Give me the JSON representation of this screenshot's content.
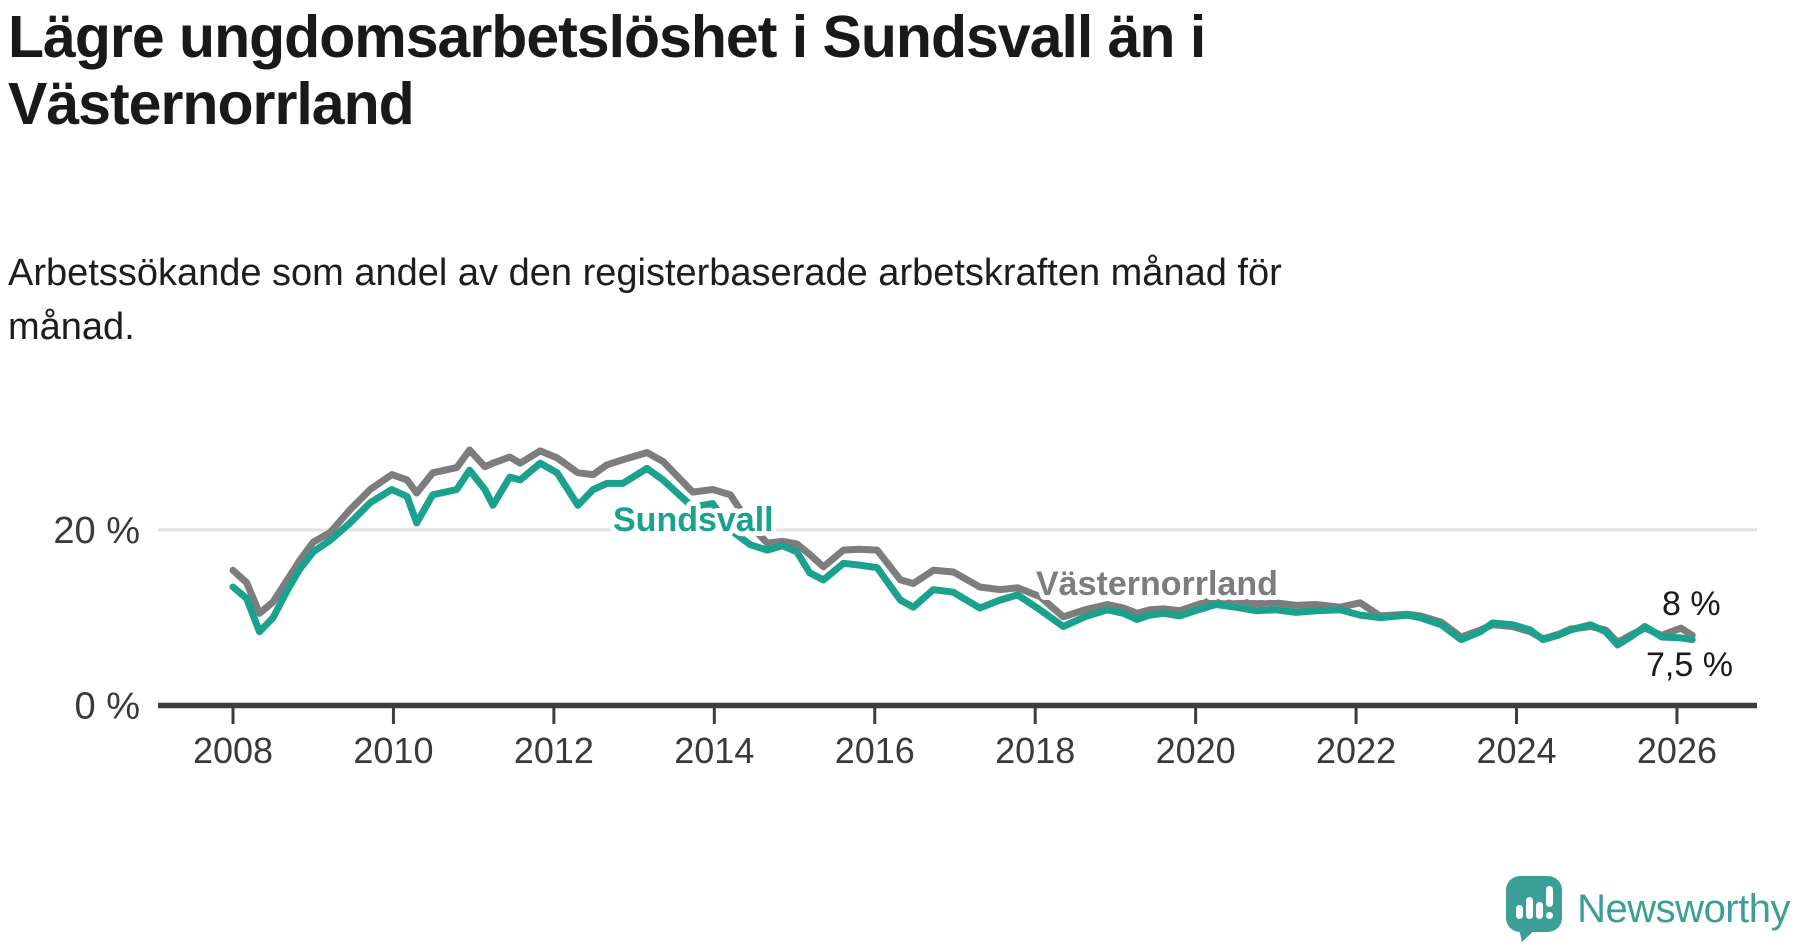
{
  "header": {
    "title_lines": [
      "Lägre ungdomsarbetslöshet i Sundsvall än i",
      "Västernorrland"
    ],
    "subtitle_lines": [
      "Arbetssökande som andel av den registerbaserade arbetskraften månad för",
      "månad."
    ]
  },
  "chart_data": {
    "type": "line",
    "title": "Lägre ungdomsarbetslöshet i Sundsvall än i Västernorrland",
    "subtitle": "Arbetssökande som andel av den registerbaserade arbetskraften månad för månad.",
    "xlabel": "",
    "ylabel": "",
    "xlim": [
      2007.7,
      2027.0
    ],
    "ylim": [
      0,
      33
    ],
    "grid": "single horizontal gridline at 20%",
    "legend": "inline labels on lines",
    "x_ticks": [
      2008,
      2010,
      2012,
      2014,
      2016,
      2018,
      2020,
      2022,
      2024,
      2026
    ],
    "y_ticks": [
      {
        "value": 0,
        "label": "0 %"
      },
      {
        "value": 20,
        "label": "20 %"
      }
    ],
    "x": [
      2008.0,
      2008.17,
      2008.33,
      2008.5,
      2008.67,
      2008.83,
      2009.0,
      2009.21,
      2009.46,
      2009.71,
      2009.98,
      2010.17,
      2010.29,
      2010.49,
      2010.79,
      2010.95,
      2011.14,
      2011.24,
      2011.45,
      2011.58,
      2011.83,
      2012.04,
      2012.3,
      2012.49,
      2012.66,
      2012.86,
      2013.16,
      2013.36,
      2013.73,
      2013.98,
      2014.2,
      2014.45,
      2014.66,
      2014.85,
      2015.03,
      2015.19,
      2015.36,
      2015.61,
      2015.8,
      2016.03,
      2016.32,
      2016.48,
      2016.73,
      2016.98,
      2017.31,
      2017.56,
      2017.78,
      2018.06,
      2018.35,
      2018.62,
      2018.9,
      2019.1,
      2019.27,
      2019.43,
      2019.6,
      2019.8,
      2020.0,
      2020.25,
      2020.5,
      2020.75,
      2021.0,
      2021.25,
      2021.5,
      2021.8,
      2022.05,
      2022.3,
      2022.64,
      2022.8,
      2023.06,
      2023.31,
      2023.55,
      2023.7,
      2023.95,
      2024.17,
      2024.33,
      2024.52,
      2024.67,
      2024.92,
      2025.11,
      2025.26,
      2025.42,
      2025.6,
      2025.81,
      2026.05,
      2026.19
    ],
    "series": [
      {
        "name": "Sundsvall",
        "color": "#1aa28e",
        "end_label": "7,5 %",
        "end_value": 7.5,
        "values": [
          13.5,
          12.2,
          8.4,
          10.0,
          13.0,
          15.5,
          17.5,
          18.8,
          20.8,
          23.1,
          24.6,
          23.8,
          20.8,
          24.0,
          24.6,
          26.8,
          24.6,
          22.8,
          26.0,
          25.7,
          27.6,
          26.5,
          22.8,
          24.6,
          25.3,
          25.3,
          27.0,
          25.7,
          22.6,
          23.0,
          20.0,
          18.3,
          17.7,
          18.2,
          17.5,
          15.1,
          14.3,
          16.2,
          16.0,
          15.7,
          12.0,
          11.2,
          13.2,
          12.9,
          11.1,
          12.0,
          12.6,
          10.9,
          9.0,
          10.1,
          10.9,
          10.5,
          9.8,
          10.3,
          10.5,
          10.2,
          10.8,
          11.5,
          11.2,
          10.8,
          10.9,
          10.6,
          10.8,
          10.9,
          10.3,
          10.0,
          10.3,
          10.0,
          9.2,
          7.5,
          8.4,
          9.4,
          9.2,
          8.6,
          7.5,
          8.0,
          8.6,
          9.2,
          8.4,
          6.9,
          7.8,
          9.0,
          7.8,
          7.7,
          7.5
        ]
      },
      {
        "name": "Västernorrland",
        "color": "#7d7c7e",
        "end_label": "8 %",
        "end_value": 8.0,
        "values": [
          15.4,
          14.0,
          10.5,
          11.8,
          14.2,
          16.5,
          18.6,
          19.7,
          22.3,
          24.6,
          26.3,
          25.7,
          24.2,
          26.5,
          27.1,
          29.1,
          27.2,
          27.6,
          28.3,
          27.6,
          29.0,
          28.2,
          26.5,
          26.3,
          27.4,
          28.0,
          28.8,
          27.8,
          24.3,
          24.6,
          24.0,
          20.5,
          18.5,
          18.7,
          18.4,
          17.2,
          15.8,
          17.7,
          17.8,
          17.7,
          14.3,
          13.9,
          15.4,
          15.2,
          13.5,
          13.2,
          13.4,
          12.4,
          10.1,
          10.9,
          11.5,
          11.1,
          10.5,
          10.9,
          11.0,
          10.8,
          11.4,
          12.2,
          12.0,
          11.6,
          11.7,
          11.4,
          11.5,
          11.2,
          11.7,
          10.2,
          10.4,
          10.2,
          9.5,
          7.8,
          8.6,
          9.2,
          9.0,
          8.4,
          7.6,
          8.1,
          8.7,
          9.0,
          8.6,
          7.2,
          8.0,
          8.8,
          8.0,
          8.8,
          8.0
        ]
      }
    ]
  },
  "logo": {
    "text": "Newsworthy",
    "icon": "newsworthy-speech-bubble-barchart-icon"
  },
  "colors": {
    "background": "#ffffff",
    "title": "#191919",
    "subtitle": "#1d1d1d",
    "teal": "#1aa28e",
    "gray": "#7d7c7e",
    "gridline": "#e2e2e2",
    "axis": "#3d3d3d",
    "tick_label": "#3a3a3a",
    "end_label": "#1a1a1a",
    "halo": "#ffffff",
    "logo_teal": "#3b9e97"
  }
}
